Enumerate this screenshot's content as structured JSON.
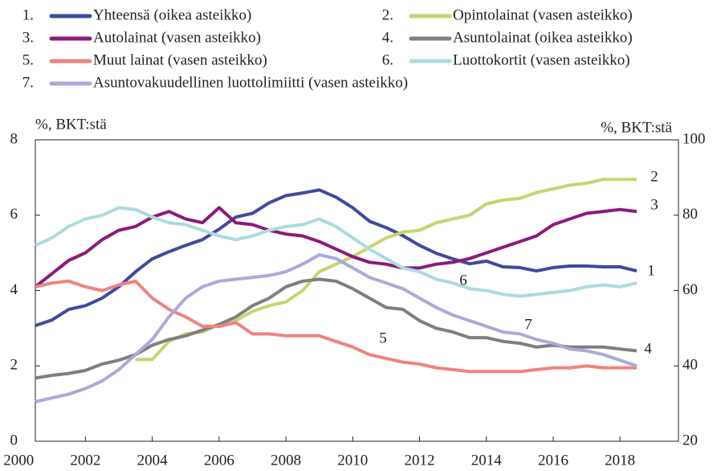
{
  "chart_data": {
    "type": "line",
    "y_label": "%, BKT:stä",
    "y2_label": "%, BKT:stä",
    "x": [
      2000.5,
      2001,
      2001.5,
      2002,
      2002.5,
      2003,
      2003.5,
      2004,
      2004.5,
      2005,
      2005.5,
      2006,
      2006.5,
      2007,
      2007.5,
      2008,
      2008.5,
      2009,
      2009.5,
      2010,
      2010.5,
      2011,
      2011.5,
      2012,
      2012.5,
      2013,
      2013.5,
      2014,
      2014.5,
      2015,
      2015.5,
      2016,
      2016.5,
      2017,
      2017.5,
      2018,
      2018.5
    ],
    "xlim": [
      2000.5,
      2019.75
    ],
    "xticks": [
      2000,
      2002,
      2004,
      2006,
      2008,
      2010,
      2012,
      2014,
      2016,
      2018
    ],
    "ylim": [
      0,
      8
    ],
    "yticks": [
      0,
      2,
      4,
      6,
      8
    ],
    "y2lim": [
      20,
      100
    ],
    "y2ticks": [
      20,
      40,
      60,
      80,
      100
    ],
    "series": [
      {
        "name": "Yhteensä (oikea asteikko)",
        "legend_prefix": "1.",
        "end_label": "1",
        "color": "#3f4a9e",
        "axis": "y2",
        "values": [
          50.7,
          52.2,
          55,
          56,
          58,
          61,
          65,
          68.4,
          70.3,
          72,
          73.5,
          76.3,
          79.5,
          80.5,
          83.3,
          85.2,
          85.9,
          86.7,
          84.8,
          82,
          78.4,
          76.7,
          74.6,
          72,
          69.9,
          68.4,
          67.1,
          67.8,
          66.3,
          66.1,
          65.2,
          66.1,
          66.5,
          66.5,
          66.3,
          66.3,
          65.2
        ]
      },
      {
        "name": "Opintolainat (vasen asteikko)",
        "legend_prefix": "2.",
        "end_label": "2",
        "color": "#c9d46f",
        "values": [
          null,
          null,
          null,
          null,
          null,
          null,
          2.17,
          2.17,
          2.65,
          2.85,
          2.9,
          3.1,
          3.2,
          3.45,
          3.6,
          3.7,
          4.0,
          4.5,
          4.7,
          4.9,
          5.15,
          5.4,
          5.55,
          5.6,
          5.8,
          5.9,
          6.0,
          6.3,
          6.4,
          6.45,
          6.6,
          6.7,
          6.8,
          6.85,
          6.95,
          6.95,
          6.95
        ]
      },
      {
        "name": "Autolainat (vasen asteikko)",
        "legend_prefix": "3.",
        "end_label": "3",
        "color": "#8c1a7c",
        "values": [
          4.1,
          4.45,
          4.8,
          5.0,
          5.35,
          5.6,
          5.7,
          5.95,
          6.1,
          5.9,
          5.8,
          6.2,
          5.8,
          5.75,
          5.6,
          5.5,
          5.45,
          5.3,
          5.1,
          4.9,
          4.75,
          4.7,
          4.6,
          4.6,
          4.7,
          4.75,
          4.85,
          5.0,
          5.15,
          5.3,
          5.45,
          5.75,
          5.9,
          6.05,
          6.1,
          6.15,
          6.1
        ]
      },
      {
        "name": "Asuntolainat (oikea asteikko)",
        "legend_prefix": "4.",
        "end_label": "4",
        "color": "#7f7f7f",
        "axis": "y2",
        "values": [
          36.8,
          37.5,
          38,
          38.8,
          40.5,
          41.5,
          43,
          45.5,
          47,
          48,
          49.5,
          51,
          53,
          56,
          58,
          61,
          62.5,
          63,
          62.5,
          60.5,
          58,
          55.5,
          55,
          52,
          50,
          49,
          47.5,
          47.5,
          46.5,
          46,
          45,
          45.5,
          45,
          45,
          45,
          44.5,
          44
        ]
      },
      {
        "name": "Muut lainat (vasen asteikko)",
        "legend_prefix": "5.",
        "end_label": "5",
        "color": "#f0837f",
        "values": [
          4.1,
          4.2,
          4.25,
          4.1,
          4.0,
          4.15,
          4.25,
          3.8,
          3.5,
          3.3,
          3.05,
          3.05,
          3.15,
          2.85,
          2.85,
          2.8,
          2.8,
          2.8,
          2.65,
          2.5,
          2.3,
          2.2,
          2.1,
          2.05,
          1.95,
          1.9,
          1.85,
          1.85,
          1.85,
          1.85,
          1.9,
          1.95,
          1.95,
          2.0,
          1.95,
          1.95,
          1.95
        ]
      },
      {
        "name": "Luottokortit (vasen asteikko)",
        "legend_prefix": "6.",
        "end_label": "6",
        "color": "#a9dcdd",
        "values": [
          5.2,
          5.4,
          5.7,
          5.9,
          6.0,
          6.2,
          6.15,
          5.95,
          5.8,
          5.75,
          5.6,
          5.45,
          5.35,
          5.45,
          5.6,
          5.7,
          5.75,
          5.9,
          5.7,
          5.4,
          5.1,
          4.85,
          4.6,
          4.5,
          4.3,
          4.2,
          4.05,
          4.0,
          3.9,
          3.85,
          3.9,
          3.95,
          4.0,
          4.1,
          4.15,
          4.1,
          4.2
        ]
      },
      {
        "name": "Asuntovakuudellinen luottolimiitti (vasen asteikko)",
        "legend_prefix": "7.",
        "end_label": "7",
        "color": "#aaaadd",
        "values": [
          1.05,
          1.15,
          1.25,
          1.4,
          1.6,
          1.9,
          2.3,
          2.7,
          3.3,
          3.8,
          4.1,
          4.25,
          4.3,
          4.35,
          4.4,
          4.5,
          4.7,
          4.95,
          4.85,
          4.6,
          4.35,
          4.2,
          4.05,
          3.8,
          3.55,
          3.35,
          3.2,
          3.05,
          2.9,
          2.85,
          2.7,
          2.6,
          2.45,
          2.4,
          2.3,
          2.15,
          2.0
        ]
      }
    ]
  }
}
